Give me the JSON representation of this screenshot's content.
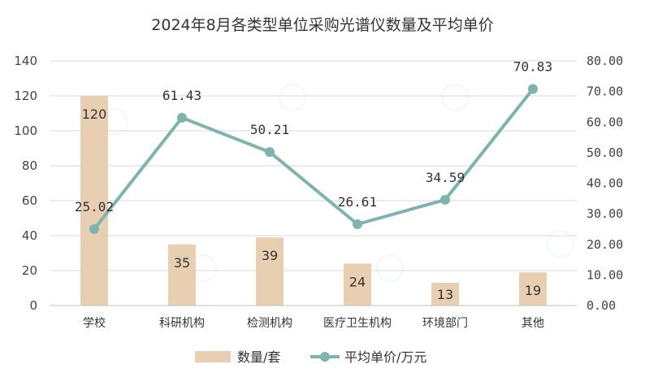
{
  "chart_data": {
    "type": "bar+line",
    "title": "2024年8月各类型单位采购光谱仪数量及平均单价",
    "categories": [
      "学校",
      "科研机构",
      "检测机构",
      "医疗卫生机构",
      "环境部门",
      "其他"
    ],
    "series": [
      {
        "name": "数量/套",
        "type": "bar",
        "axis": "left",
        "values": [
          120,
          35,
          39,
          24,
          13,
          19
        ],
        "labels": [
          "120",
          "35",
          "39",
          "24",
          "13",
          "19"
        ],
        "color": "#e8cfb2"
      },
      {
        "name": "平均单价/万元",
        "type": "line",
        "axis": "right",
        "values": [
          25.02,
          61.43,
          50.21,
          26.61,
          34.59,
          70.83
        ],
        "labels": [
          "25.02",
          "61.43",
          "50.21",
          "26.61",
          "34.59",
          "70.83"
        ],
        "color": "#7fb3ad"
      }
    ],
    "y_left": {
      "min": 0,
      "max": 140,
      "step": 20,
      "ticks": [
        "0",
        "20",
        "40",
        "60",
        "80",
        "100",
        "120",
        "140"
      ]
    },
    "y_right": {
      "min": 0,
      "max": 80,
      "step": 10,
      "ticks": [
        "0.00",
        "10.00",
        "20.00",
        "30.00",
        "40.00",
        "50.00",
        "60.00",
        "70.00",
        "80.00"
      ]
    },
    "grid": true,
    "legend": "bottom"
  }
}
